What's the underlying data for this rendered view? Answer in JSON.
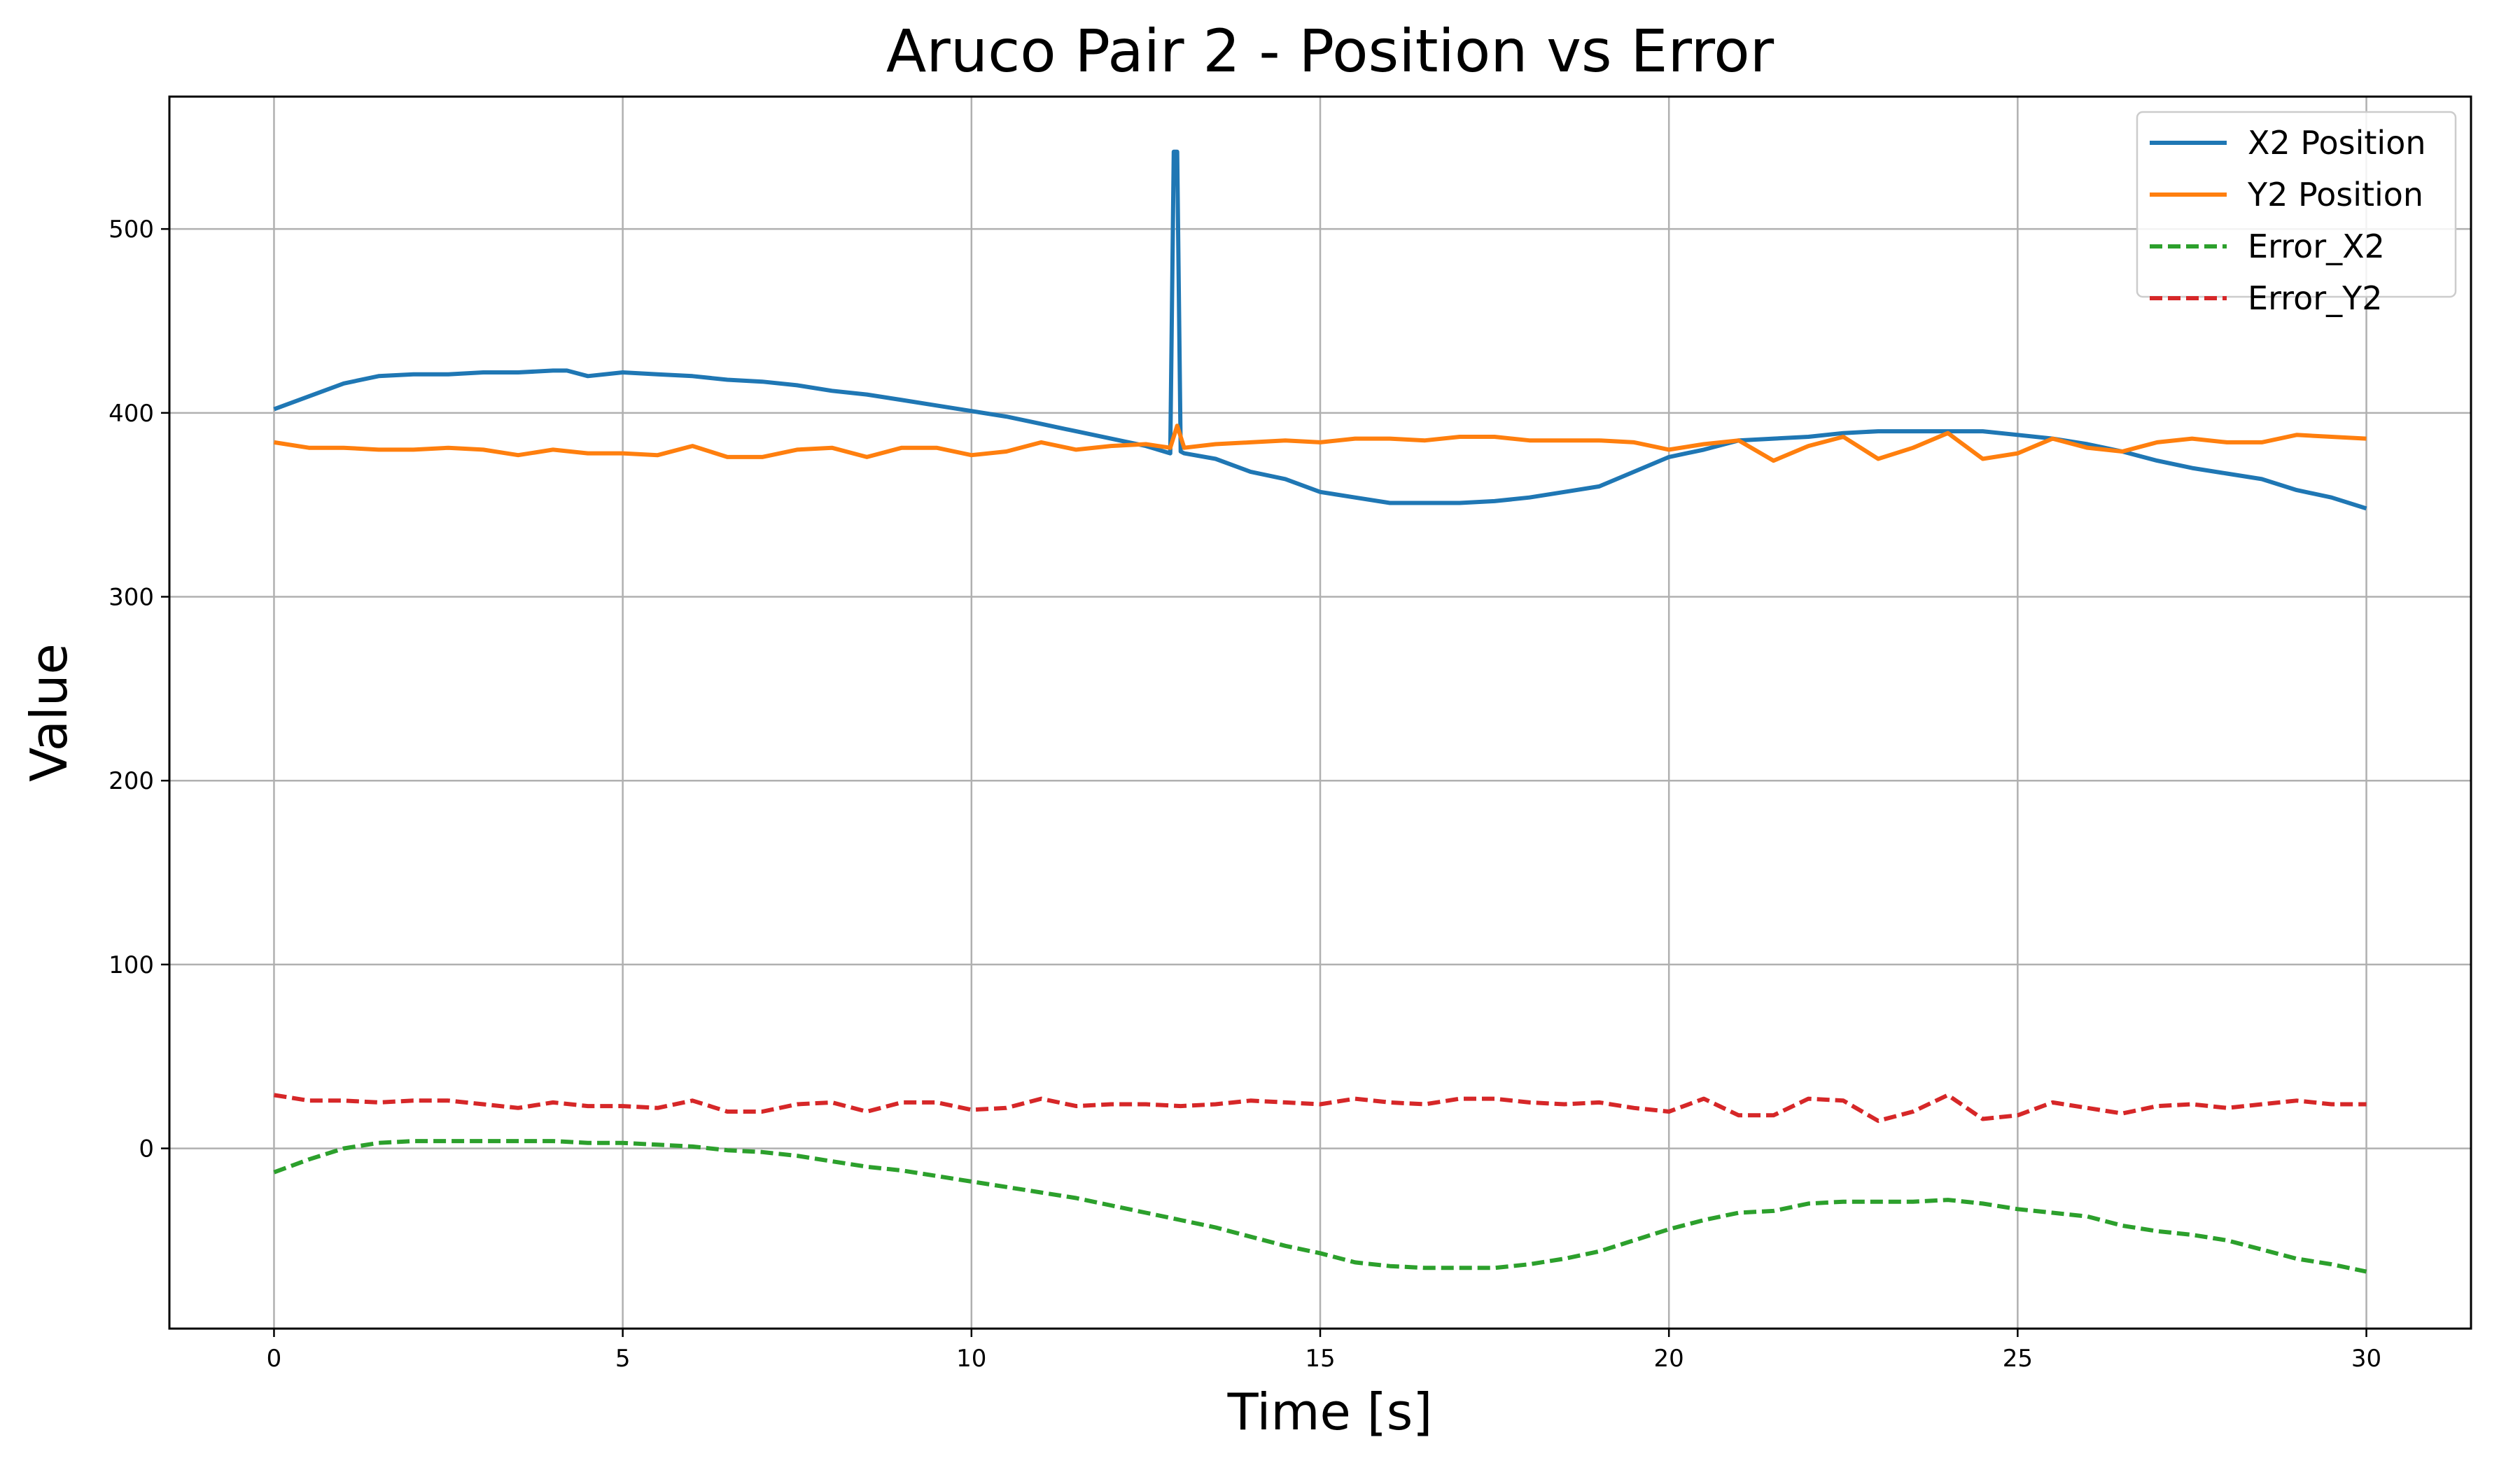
{
  "chart_data": {
    "type": "line",
    "title": "Aruco Pair 2 - Position vs Error",
    "xlabel": "Time [s]",
    "ylabel": "Value",
    "xlim": [
      -1.5,
      31.5
    ],
    "ylim": [
      -98,
      572
    ],
    "xticks": [
      0,
      5,
      10,
      15,
      20,
      25,
      30
    ],
    "yticks": [
      0,
      100,
      200,
      300,
      400,
      500
    ],
    "grid": true,
    "legend_position": "top-right",
    "series": [
      {
        "name": "X2 Position",
        "color": "#1f77b4",
        "dash": "solid",
        "x": [
          0,
          0.5,
          1,
          1.5,
          2,
          2.5,
          3,
          3.5,
          4,
          4.2,
          4.5,
          5,
          5.5,
          6,
          6.5,
          7,
          7.5,
          8,
          8.5,
          9,
          9.5,
          10,
          10.5,
          11,
          11.5,
          12,
          12.5,
          12.85,
          12.9,
          12.95,
          13.0,
          13.05,
          13.5,
          14,
          14.5,
          15,
          15.5,
          16,
          16.5,
          17,
          17.5,
          18,
          18.5,
          19,
          19.5,
          20,
          20.5,
          21,
          21.5,
          22,
          22.5,
          23,
          23.5,
          24,
          24.5,
          25,
          25.5,
          26,
          26.5,
          27,
          27.5,
          28,
          28.5,
          29,
          29.5,
          30
        ],
        "y": [
          402,
          409,
          416,
          420,
          421,
          421,
          422,
          422,
          423,
          423,
          420,
          422,
          421,
          420,
          418,
          417,
          415,
          412,
          410,
          407,
          404,
          401,
          398,
          394,
          390,
          386,
          382,
          378,
          542,
          542,
          379,
          378,
          375,
          368,
          364,
          357,
          354,
          351,
          351,
          351,
          352,
          354,
          357,
          360,
          368,
          376,
          380,
          385,
          386,
          387,
          389,
          390,
          390,
          390,
          390,
          388,
          386,
          383,
          379,
          374,
          370,
          367,
          364,
          358,
          354,
          348
        ]
      },
      {
        "name": "Y2 Position",
        "color": "#ff7f0e",
        "dash": "solid",
        "x": [
          0,
          0.5,
          1,
          1.5,
          2,
          2.5,
          3,
          3.5,
          4,
          4.5,
          5,
          5.5,
          6,
          6.5,
          7,
          7.5,
          8,
          8.5,
          9,
          9.5,
          10,
          10.5,
          11,
          11.5,
          12,
          12.5,
          12.85,
          12.95,
          13.05,
          13.5,
          14,
          14.5,
          15,
          15.5,
          16,
          16.5,
          17,
          17.5,
          18,
          18.5,
          19,
          19.5,
          20,
          20.5,
          21,
          21.5,
          22,
          22.5,
          23,
          23.5,
          24,
          24.5,
          25,
          25.5,
          26,
          26.5,
          27,
          27.5,
          28,
          28.5,
          29,
          29.5,
          30
        ],
        "y": [
          384,
          381,
          381,
          380,
          380,
          381,
          380,
          377,
          380,
          378,
          378,
          377,
          382,
          376,
          376,
          380,
          381,
          376,
          381,
          381,
          377,
          379,
          384,
          380,
          382,
          383,
          381,
          393,
          381,
          383,
          384,
          385,
          384,
          386,
          386,
          385,
          387,
          387,
          385,
          385,
          385,
          384,
          380,
          383,
          385,
          374,
          382,
          387,
          375,
          381,
          389,
          375,
          378,
          386,
          381,
          379,
          384,
          386,
          384,
          384,
          388,
          387,
          386
        ]
      },
      {
        "name": "Error_X2",
        "color": "#2ca02c",
        "dash": "dashed",
        "x": [
          0,
          0.5,
          1,
          1.5,
          2,
          2.5,
          3,
          3.5,
          4,
          4.5,
          5,
          5.5,
          6,
          6.5,
          7,
          7.5,
          8,
          8.5,
          9,
          9.5,
          10,
          10.5,
          11,
          11.5,
          12,
          12.5,
          13,
          13.5,
          14,
          14.5,
          15,
          15.5,
          16,
          16.5,
          17,
          17.5,
          18,
          18.5,
          19,
          19.5,
          20,
          20.5,
          21,
          21.5,
          22,
          22.5,
          23,
          23.5,
          24,
          24.5,
          25,
          25.5,
          26,
          26.5,
          27,
          27.5,
          28,
          28.5,
          29,
          29.5,
          30
        ],
        "y": [
          -13,
          -6,
          0,
          3,
          4,
          4,
          4,
          4,
          4,
          3,
          3,
          2,
          1,
          -1,
          -2,
          -4,
          -7,
          -10,
          -12,
          -15,
          -18,
          -21,
          -24,
          -27,
          -31,
          -35,
          -39,
          -43,
          -48,
          -53,
          -57,
          -62,
          -64,
          -65,
          -65,
          -65,
          -63,
          -60,
          -56,
          -50,
          -44,
          -39,
          -35,
          -34,
          -30,
          -29,
          -29,
          -29,
          -28,
          -30,
          -33,
          -35,
          -37,
          -42,
          -45,
          -47,
          -50,
          -55,
          -60,
          -63,
          -67
        ]
      },
      {
        "name": "Error_Y2",
        "color": "#d62728",
        "dash": "dashed",
        "x": [
          0,
          0.5,
          1,
          1.5,
          2,
          2.5,
          3,
          3.5,
          4,
          4.5,
          5,
          5.5,
          6,
          6.5,
          7,
          7.5,
          8,
          8.5,
          9,
          9.5,
          10,
          10.5,
          11,
          11.5,
          12,
          12.5,
          13,
          13.5,
          14,
          14.5,
          15,
          15.5,
          16,
          16.5,
          17,
          17.5,
          18,
          18.5,
          19,
          19.5,
          20,
          20.5,
          21,
          21.5,
          22,
          22.5,
          23,
          23.5,
          24,
          24.5,
          25,
          25.5,
          26,
          26.5,
          27,
          27.5,
          28,
          28.5,
          29,
          29.5,
          30
        ],
        "y": [
          29,
          26,
          26,
          25,
          26,
          26,
          24,
          22,
          25,
          23,
          23,
          22,
          26,
          20,
          20,
          24,
          25,
          20,
          25,
          25,
          21,
          22,
          27,
          23,
          24,
          24,
          23,
          24,
          26,
          25,
          24,
          27,
          25,
          24,
          27,
          27,
          25,
          24,
          25,
          22,
          20,
          27,
          18,
          18,
          27,
          26,
          15,
          20,
          29,
          16,
          18,
          25,
          22,
          19,
          23,
          24,
          22,
          24,
          26,
          24,
          24
        ]
      }
    ]
  }
}
